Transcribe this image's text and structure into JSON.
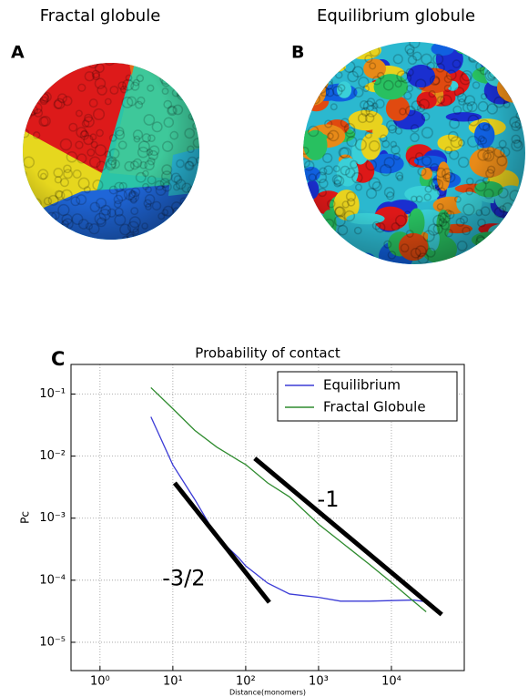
{
  "panels": {
    "a_title": "Fractal globule",
    "b_title": "Equilibrium globule",
    "a_label": "A",
    "b_label": "B",
    "c_label": "C"
  },
  "chart_data": {
    "type": "line",
    "title": "Probability of contact",
    "xlabel": "Distance(monomers)",
    "ylabel": "Pc",
    "log_x": true,
    "log_y": true,
    "grid": true,
    "legend": "upper right",
    "xlim": [
      0.4,
      100000
    ],
    "ylim": [
      3.5e-06,
      0.3
    ],
    "xticks": [
      {
        "value": 1,
        "label": "10⁰"
      },
      {
        "value": 10,
        "label": "10¹"
      },
      {
        "value": 100,
        "label": "10²"
      },
      {
        "value": 1000,
        "label": "10³"
      },
      {
        "value": 10000,
        "label": "10⁴"
      }
    ],
    "yticks": [
      {
        "value": 0.1,
        "label": "10⁻¹"
      },
      {
        "value": 0.01,
        "label": "10⁻²"
      },
      {
        "value": 0.001,
        "label": "10⁻³"
      },
      {
        "value": 0.0001,
        "label": "10⁻⁴"
      },
      {
        "value": 1e-05,
        "label": "10⁻⁵"
      }
    ],
    "x": [
      5,
      10,
      20,
      40,
      80,
      100,
      200,
      400,
      1000,
      2000,
      5000,
      10000,
      20000,
      30000
    ],
    "series": [
      {
        "name": "Equilibrium",
        "color": "#3b3bd6",
        "values": [
          0.043,
          0.0072,
          0.002,
          0.0005,
          0.00023,
          0.00017,
          9e-05,
          6e-05,
          5.3e-05,
          4.6e-05,
          4.6e-05,
          4.7e-05,
          4.8e-05,
          4.5e-05
        ]
      },
      {
        "name": "Fractal Globule",
        "color": "#2e8b2e",
        "values": [
          0.127,
          0.058,
          0.026,
          0.014,
          0.0085,
          0.0073,
          0.0037,
          0.0022,
          0.0008,
          0.00042,
          0.00018,
          9.2e-05,
          4.6e-05,
          3.1e-05
        ]
      }
    ],
    "annotations": [
      {
        "text": "-1",
        "line": [
          [
            133,
            0.0092
          ],
          [
            49000,
            2.8e-05
          ]
        ]
      },
      {
        "text": "-3/2",
        "line": [
          [
            10.6,
            0.0037
          ],
          [
            211,
            4.4e-05
          ]
        ]
      }
    ]
  }
}
